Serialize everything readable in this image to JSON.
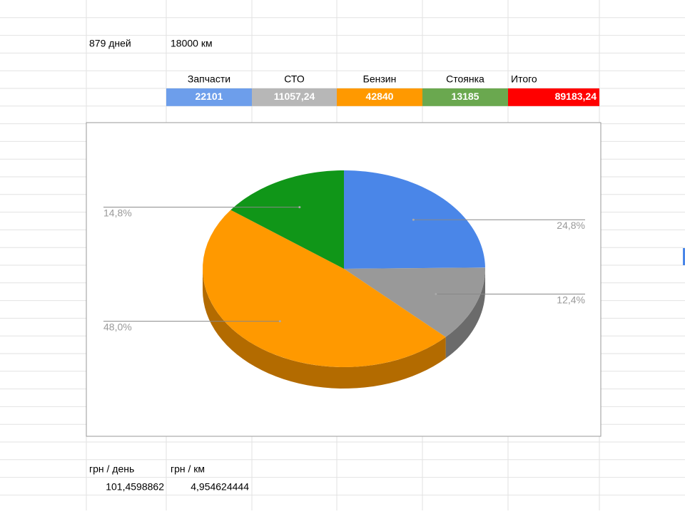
{
  "summary": {
    "days": "879 дней",
    "distance": "18000 км"
  },
  "table": {
    "headers": [
      "Запчасти",
      "СТО",
      "Бензин",
      "Стоянка",
      "Итого"
    ],
    "values": [
      "22101",
      "11057,24",
      "42840",
      "13185",
      "89183,24"
    ],
    "colors": [
      "#6d9eeb",
      "#b7b7b7",
      "#ff9900",
      "#6aa84f",
      "#ff0000"
    ]
  },
  "per_unit": {
    "headers": [
      "грн / день",
      "грн / км"
    ],
    "values": [
      "101,4598862",
      "4,954624444"
    ]
  },
  "chart_data": {
    "type": "pie",
    "three_d": true,
    "values": [
      24.8,
      12.4,
      48.0,
      14.8
    ],
    "value_labels": [
      "24,8%",
      "12,4%",
      "48,0%",
      "14,8%"
    ],
    "colors": [
      "#4a86e8",
      "#999999",
      "#ff9900",
      "#109618"
    ]
  }
}
